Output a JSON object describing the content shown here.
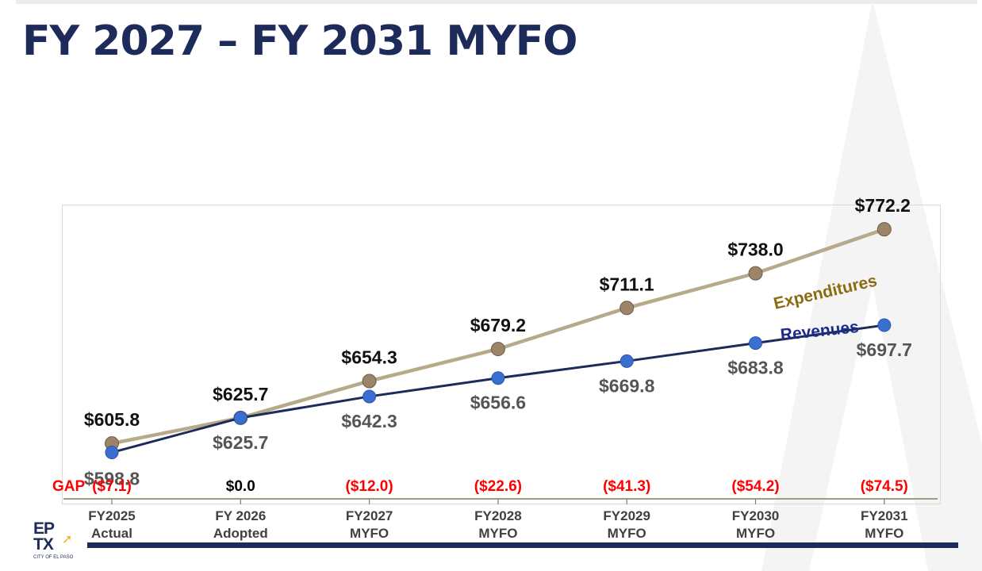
{
  "slide": {
    "title": "FY 2027 – FY 2031 MYFO"
  },
  "colors": {
    "title": "#1d2b5a",
    "expenditures_line": "#b8a98a",
    "expenditures_marker": "#9c8468",
    "expenditures_label": "#8b6b10",
    "revenues_line": "#1d2b5a",
    "revenues_marker": "#3a6fd1",
    "revenues_label": "#1d2b8a",
    "gap_negative": "#ff0000",
    "gap_zero": "#000000",
    "exp_value": "#111111",
    "rev_value": "#555555"
  },
  "logo": {
    "line1": "EP",
    "line2": "TX",
    "subtitle": "CITY OF EL PASO"
  },
  "chart_data": {
    "type": "line",
    "title": "",
    "categories": [
      [
        "FY2025",
        "Actual"
      ],
      [
        "FY 2026",
        "Adopted"
      ],
      [
        "FY2027",
        "MYFO"
      ],
      [
        "FY2028",
        "MYFO"
      ],
      [
        "FY2029",
        "MYFO"
      ],
      [
        "FY2030",
        "MYFO"
      ],
      [
        "FY2031",
        "MYFO"
      ]
    ],
    "ylim": [
      556,
      784
    ],
    "series": [
      {
        "name": "Expenditures",
        "values": [
          605.8,
          625.7,
          654.3,
          679.2,
          711.1,
          738.0,
          772.2
        ],
        "labels": [
          "$605.8",
          "$625.7",
          "$654.3",
          "$679.2",
          "$711.1",
          "$738.0",
          "$772.2"
        ]
      },
      {
        "name": "Revenues",
        "values": [
          598.8,
          625.7,
          642.3,
          656.6,
          669.8,
          683.8,
          697.7
        ],
        "labels": [
          "$598.8",
          "$625.7",
          "$642.3",
          "$656.6",
          "$669.8",
          "$683.8",
          "$697.7"
        ]
      }
    ],
    "gap": {
      "label": "GAP",
      "values": [
        -7.1,
        0.0,
        -12.0,
        -22.6,
        -41.3,
        -54.2,
        -74.5
      ],
      "labels": [
        "($7.1)",
        "$0.0",
        "($12.0)",
        "($22.6)",
        "($41.3)",
        "($54.2)",
        "($74.5)"
      ]
    }
  }
}
